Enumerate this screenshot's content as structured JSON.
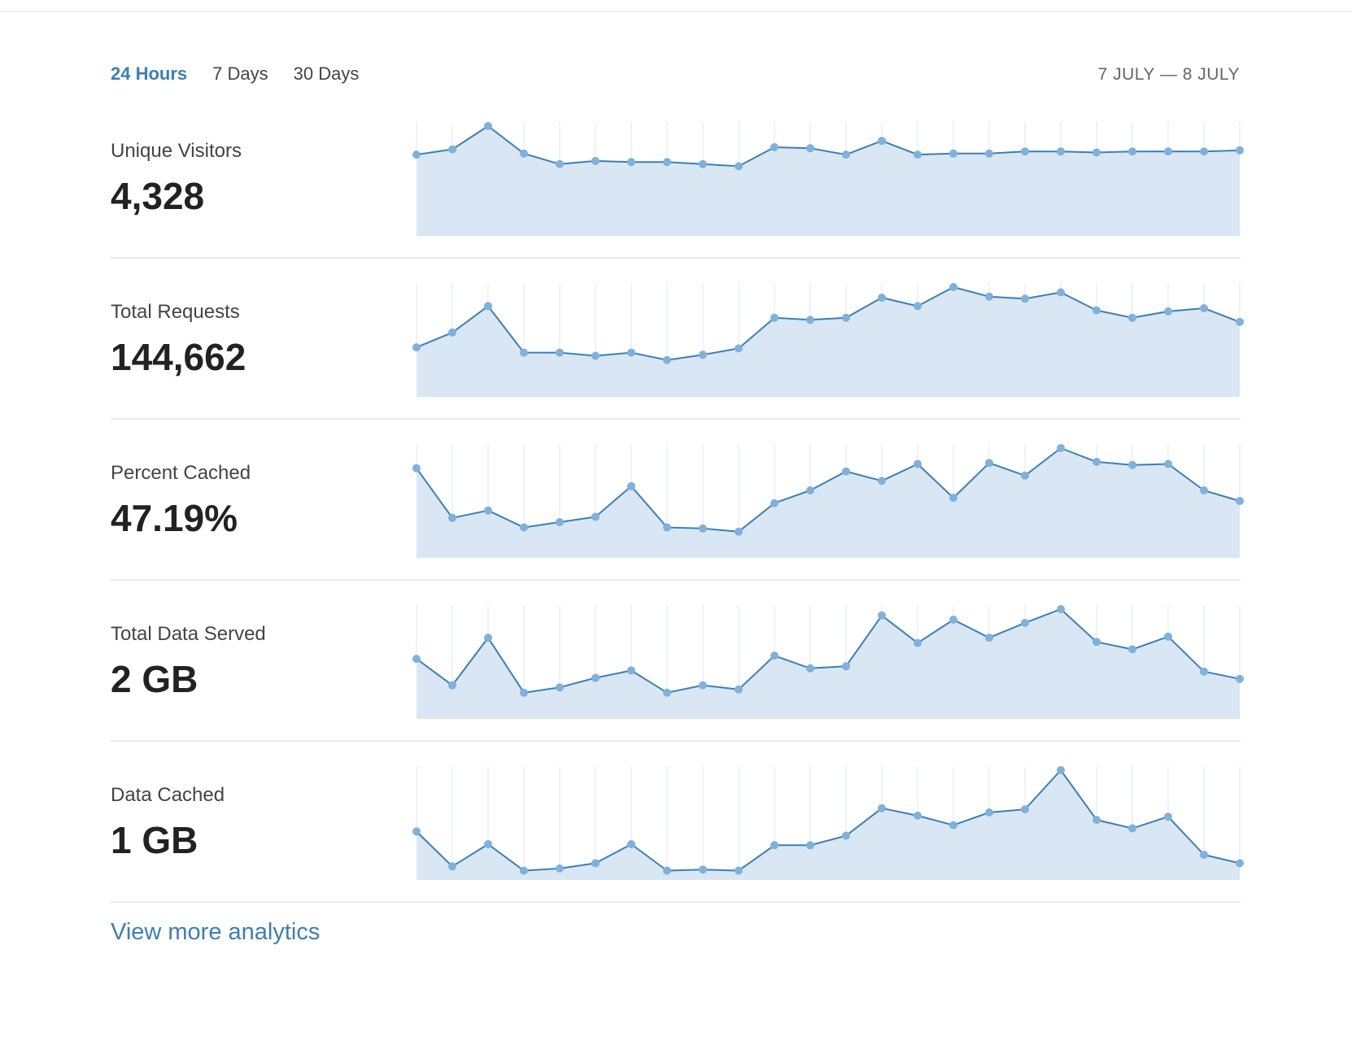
{
  "range_tabs": [
    {
      "label": "24 Hours",
      "active": true
    },
    {
      "label": "7 Days",
      "active": false
    },
    {
      "label": "30 Days",
      "active": false
    }
  ],
  "date_range": "7 JULY — 8 JULY",
  "colors": {
    "accent": "#3a7fb3",
    "line": "#3d7fb3",
    "point": "#7eb1dc",
    "fill": "#d8e7f3",
    "gridline": "#e9f0f6"
  },
  "metrics": [
    {
      "label": "Unique Visitors",
      "value": "4,328"
    },
    {
      "label": "Total Requests",
      "value": "144,662"
    },
    {
      "label": "Percent Cached",
      "value": "47.19%"
    },
    {
      "label": "Total Data Served",
      "value": "2 GB"
    },
    {
      "label": "Data Cached",
      "value": "1 GB"
    }
  ],
  "chart_data": [
    {
      "type": "area",
      "x": [
        1,
        2,
        3,
        4,
        5,
        6,
        7,
        8,
        9,
        10,
        11,
        12,
        13,
        14,
        15,
        16,
        17,
        18,
        19,
        20,
        21,
        22,
        23,
        24
      ],
      "ylim": [
        0,
        100
      ],
      "series": [
        {
          "values": [
            73,
            78,
            100,
            74,
            64,
            67,
            66,
            66,
            64,
            62,
            80,
            79,
            73,
            86,
            73,
            74,
            74,
            76,
            76,
            75,
            76,
            76,
            76,
            77
          ]
        }
      ]
    },
    {
      "type": "area",
      "x": [
        1,
        2,
        3,
        4,
        5,
        6,
        7,
        8,
        9,
        10,
        11,
        12,
        13,
        14,
        15,
        16,
        17,
        18,
        19,
        20,
        21,
        22,
        23,
        24
      ],
      "ylim": [
        0,
        100
      ],
      "series": [
        {
          "values": [
            43,
            57,
            82,
            38,
            38,
            35,
            38,
            31,
            36,
            42,
            71,
            69,
            71,
            90,
            82,
            100,
            91,
            89,
            95,
            78,
            71,
            77,
            80,
            67
          ]
        }
      ]
    },
    {
      "type": "area",
      "x": [
        1,
        2,
        3,
        4,
        5,
        6,
        7,
        8,
        9,
        10,
        11,
        12,
        13,
        14,
        15,
        16,
        17,
        18,
        19,
        20,
        21,
        22,
        23,
        24
      ],
      "ylim": [
        0,
        100
      ],
      "series": [
        {
          "values": [
            81,
            34,
            41,
            25,
            30,
            35,
            64,
            25,
            24,
            21,
            48,
            60,
            78,
            69,
            85,
            53,
            86,
            74,
            100,
            87,
            84,
            85,
            60,
            50
          ]
        }
      ]
    },
    {
      "type": "area",
      "x": [
        1,
        2,
        3,
        4,
        5,
        6,
        7,
        8,
        9,
        10,
        11,
        12,
        13,
        14,
        15,
        16,
        17,
        18,
        19,
        20,
        21,
        22,
        23,
        24
      ],
      "ylim": [
        0,
        100
      ],
      "series": [
        {
          "values": [
            53,
            28,
            73,
            21,
            26,
            35,
            42,
            21,
            28,
            24,
            56,
            44,
            46,
            94,
            68,
            90,
            73,
            87,
            100,
            69,
            62,
            74,
            41,
            34
          ]
        }
      ]
    },
    {
      "type": "area",
      "x": [
        1,
        2,
        3,
        4,
        5,
        6,
        7,
        8,
        9,
        10,
        11,
        12,
        13,
        14,
        15,
        16,
        17,
        18,
        19,
        20,
        21,
        22,
        23,
        24
      ],
      "ylim": [
        0,
        100
      ],
      "series": [
        {
          "values": [
            42,
            9,
            30,
            5,
            7,
            12,
            30,
            5,
            6,
            5,
            29,
            29,
            38,
            64,
            57,
            48,
            60,
            63,
            100,
            53,
            45,
            56,
            20,
            12
          ]
        }
      ]
    }
  ],
  "more_link": "View more analytics"
}
